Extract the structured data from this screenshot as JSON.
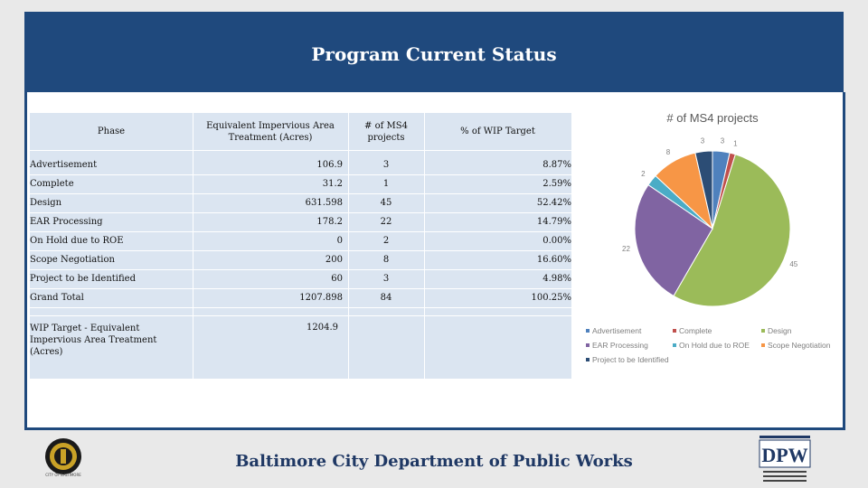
{
  "header": {
    "title": "Program Current Status"
  },
  "table": {
    "headers": [
      "Phase",
      "Equivalent Impervious Area Treatment (Acres)",
      "# of MS4 projects",
      "% of WIP Target"
    ],
    "rows": [
      {
        "phase": "Advertisement",
        "acres": "106.9",
        "projects": "3",
        "pct": "8.87%"
      },
      {
        "phase": "Complete",
        "acres": "31.2",
        "projects": "1",
        "pct": "2.59%"
      },
      {
        "phase": "Design",
        "acres": "631.598",
        "projects": "45",
        "pct": "52.42%"
      },
      {
        "phase": "EAR Processing",
        "acres": "178.2",
        "projects": "22",
        "pct": "14.79%"
      },
      {
        "phase": "On Hold due to ROE",
        "acres": "0",
        "projects": "2",
        "pct": "0.00%"
      },
      {
        "phase": "Scope Negotiation",
        "acres": "200",
        "projects": "8",
        "pct": "16.60%"
      },
      {
        "phase": "Project to be Identified",
        "acres": "60",
        "projects": "3",
        "pct": "4.98%"
      },
      {
        "phase": "Grand Total",
        "acres": "1207.898",
        "projects": "84",
        "pct": "100.25%"
      }
    ],
    "wip": {
      "label": "WIP Target - Equivalent Impervious Area Treatment (Acres)",
      "value": "1204.9"
    }
  },
  "chart_data": {
    "type": "pie",
    "title": "# of MS4 projects",
    "categories": [
      "Advertisement",
      "Complete",
      "Design",
      "EAR Processing",
      "On Hold due to ROE",
      "Scope Negotiation",
      "Project to be Identified"
    ],
    "values": [
      3,
      1,
      45,
      22,
      2,
      8,
      3
    ],
    "colors": [
      "#4f81bd",
      "#c0504d",
      "#9bbb59",
      "#8064a2",
      "#4bacc6",
      "#f79646",
      "#2c4d75"
    ],
    "legend_position": "bottom"
  },
  "footer": {
    "org": "Baltimore City Department of Public Works",
    "seal_caption": "CITY OF BALTIMORE"
  },
  "logo": {
    "dpw": "DPW"
  }
}
